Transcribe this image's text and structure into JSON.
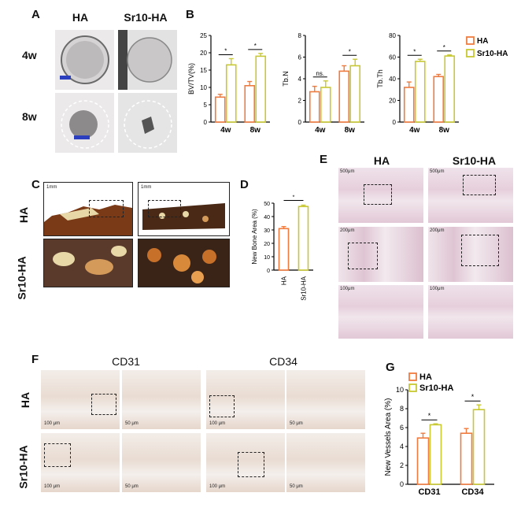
{
  "panels": {
    "A": "A",
    "B": "B",
    "C": "C",
    "D": "D",
    "E": "E",
    "F": "F",
    "G": "G"
  },
  "panelA": {
    "cols": [
      "HA",
      "Sr10-HA"
    ],
    "rows": [
      "4w",
      "8w"
    ]
  },
  "panelC": {
    "rows": [
      "HA",
      "Sr10-HA"
    ],
    "scale": [
      "1mm",
      "1mm"
    ]
  },
  "panelE": {
    "cols": [
      "HA",
      "Sr10-HA"
    ],
    "scales": [
      "500μm",
      "200μm",
      "100μm",
      "500μm",
      "200μm",
      "100μm"
    ]
  },
  "panelF": {
    "cols": [
      "CD31",
      "CD34"
    ],
    "rows": [
      "HA",
      "Sr10-HA"
    ],
    "scales": [
      "100 μm",
      "50 μm",
      "100 μm",
      "50 μm",
      "100 μm",
      "50 μm",
      "100 μm",
      "50 μm"
    ]
  },
  "colors": {
    "HA": "#f07b3f",
    "Sr10HA": "#c8c832"
  },
  "chart_data": [
    {
      "id": "B1",
      "type": "bar",
      "ylabel": "BV/TV(%)",
      "categories": [
        "4w",
        "8w"
      ],
      "ylim": [
        0,
        25
      ],
      "yticks": [
        0,
        5,
        10,
        15,
        20,
        25
      ],
      "series": [
        {
          "name": "HA",
          "values": [
            7.2,
            10.5
          ],
          "err": [
            0.8,
            1.2
          ]
        },
        {
          "name": "Sr10-HA",
          "values": [
            16.5,
            19
          ],
          "err": [
            1.8,
            0.8
          ]
        }
      ],
      "sig": [
        "*",
        "*"
      ]
    },
    {
      "id": "B2",
      "type": "bar",
      "ylabel": "Tb.N",
      "categories": [
        "4w",
        "8w"
      ],
      "ylim": [
        0,
        8
      ],
      "yticks": [
        0,
        2,
        4,
        6,
        8
      ],
      "series": [
        {
          "name": "HA",
          "values": [
            2.8,
            4.7
          ],
          "err": [
            0.5,
            0.5
          ]
        },
        {
          "name": "Sr10-HA",
          "values": [
            3.2,
            5.2
          ],
          "err": [
            0.6,
            0.6
          ]
        }
      ],
      "sig": [
        "ns.",
        "*"
      ]
    },
    {
      "id": "B3",
      "type": "bar",
      "ylabel": "Tb.Th",
      "categories": [
        "4w",
        "8w"
      ],
      "ylim": [
        0,
        80
      ],
      "yticks": [
        0,
        20,
        40,
        60,
        80
      ],
      "series": [
        {
          "name": "HA",
          "values": [
            32,
            42
          ],
          "err": [
            5,
            2
          ]
        },
        {
          "name": "Sr10-HA",
          "values": [
            56,
            61
          ],
          "err": [
            2,
            1
          ]
        }
      ],
      "sig": [
        "*",
        "*"
      ],
      "legend": [
        "HA",
        "Sr10-HA"
      ]
    },
    {
      "id": "D",
      "type": "bar",
      "ylabel": "New Bone Area (%)",
      "categories": [
        "HA",
        "Sr10-HA"
      ],
      "ylim": [
        0,
        50
      ],
      "yticks": [
        0,
        10,
        20,
        30,
        40,
        50
      ],
      "values": [
        31,
        47.5
      ],
      "err": [
        1.5,
        1
      ],
      "sig": [
        "*"
      ]
    },
    {
      "id": "G",
      "type": "bar",
      "ylabel": "New Vessels Area (%)",
      "categories": [
        "CD31",
        "CD34"
      ],
      "ylim": [
        0,
        10
      ],
      "yticks": [
        0,
        2,
        4,
        6,
        8,
        10
      ],
      "series": [
        {
          "name": "HA",
          "values": [
            4.9,
            5.4
          ],
          "err": [
            0.5,
            0.5
          ]
        },
        {
          "name": "Sr10-HA",
          "values": [
            6.3,
            7.9
          ],
          "err": [
            0.1,
            0.5
          ]
        }
      ],
      "sig": [
        "*",
        "*"
      ],
      "legend": [
        "HA",
        "Sr10-HA"
      ]
    }
  ]
}
